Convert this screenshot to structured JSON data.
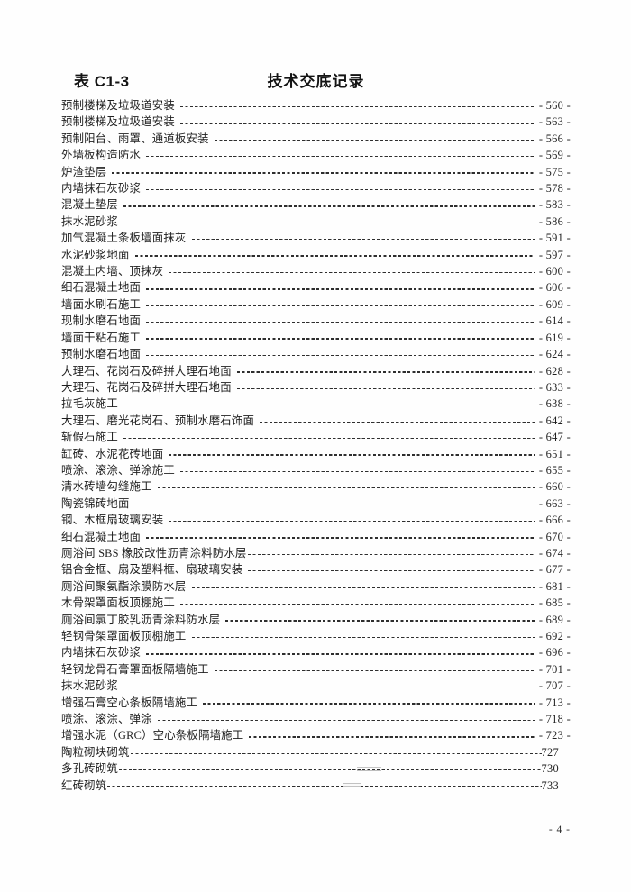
{
  "header": {
    "form_code": "表 C1-3",
    "title": "技术交底记录"
  },
  "toc": {
    "entries": [
      {
        "label": "预制楼梯及垃圾道安装",
        "page": "- 560 -"
      },
      {
        "label": "预制楼梯及垃圾道安装",
        "page": "- 563 -"
      },
      {
        "label": "预制阳台、雨罩、通道板安装",
        "page": "- 566 -"
      },
      {
        "label": "外墙板构造防水",
        "page": "- 569 -"
      },
      {
        "label": "炉渣垫层",
        "page": "- 575 -"
      },
      {
        "label": "内墙抹石灰砂浆",
        "page": "- 578 -"
      },
      {
        "label": "混凝土垫层",
        "page": "- 583 -"
      },
      {
        "label": "抹水泥砂浆",
        "page": "- 586 -"
      },
      {
        "label": "加气混凝土条板墙面抹灰",
        "page": "- 591 -"
      },
      {
        "label": "水泥砂浆地面",
        "page": "- 597 -"
      },
      {
        "label": "混凝土内墙、顶抹灰",
        "page": "- 600 -"
      },
      {
        "label": "细石混凝土地面",
        "page": "- 606 -"
      },
      {
        "label": "墙面水刷石施工",
        "page": "- 609 -"
      },
      {
        "label": "现制水磨石地面",
        "page": "- 614 -"
      },
      {
        "label": "墙面干粘石施工",
        "page": "- 619 -"
      },
      {
        "label": "预制水磨石地面",
        "page": "- 624 -"
      },
      {
        "label": "大理石、花岗石及碎拼大理石地面",
        "page": "- 628 -"
      },
      {
        "label": "大理石、花岗石及碎拼大理石地面",
        "page": "- 633 -"
      },
      {
        "label": "拉毛灰施工",
        "page": "- 638 -"
      },
      {
        "label": "大理石、磨光花岗石、预制水磨石饰面",
        "page": "- 642 -"
      },
      {
        "label": "斩假石施工",
        "page": "- 647 -"
      },
      {
        "label": "缸砖、水泥花砖地面",
        "page": "- 651 -"
      },
      {
        "label": "喷涂、滚涂、弹涂施工",
        "page": "- 655 -"
      },
      {
        "label": "清水砖墙勾缝施工",
        "page": "- 660 -"
      },
      {
        "label": "陶瓷锦砖地面",
        "page": "- 663 -"
      },
      {
        "label": "钢、木框扇玻璃安装",
        "page": "- 666 -"
      },
      {
        "label": "细石混凝土地面",
        "page": "- 670 -"
      },
      {
        "label": "厕浴间 SBS 橡胶改性沥青涂料防水层",
        "page": "- 674 -",
        "variant": "nogap"
      },
      {
        "label": "铝合金框、扇及塑料框、扇玻璃安装",
        "page": "- 677 -"
      },
      {
        "label": "厕浴间聚氨酯涂膜防水层",
        "page": "- 681 -"
      },
      {
        "label": "木骨架罩面板顶棚施工",
        "page": "- 685 -"
      },
      {
        "label": "厕浴间氯丁胶乳沥青涂料防水层",
        "page": "- 689 -"
      },
      {
        "label": "轻钢骨架罩面板顶棚施工",
        "page": "- 692 -"
      },
      {
        "label": "内墙抹石灰砂浆",
        "page": "- 696 -"
      },
      {
        "label": "轻钢龙骨石膏罩面板隔墙施工",
        "page": "- 701 -"
      },
      {
        "label": "抹水泥砂浆",
        "page": "- 707 -"
      },
      {
        "label": "增强石膏空心条板隔墙施工",
        "page": "- 713 -"
      },
      {
        "label": "喷涂、滚涂、弹涂",
        "page": "- 718 -"
      },
      {
        "label": "增强水泥（GRC）空心条板隔墙施工",
        "page": "- 723 -"
      },
      {
        "label": "陶粒砌块砌筑",
        "page": "727",
        "variant": "tight"
      },
      {
        "label": "多孔砖砌筑",
        "page": "730",
        "variant": "tight"
      },
      {
        "label": "红砖砌筑",
        "page": "733",
        "variant": "tight"
      }
    ]
  },
  "footer": {
    "page_label": "- 4 -"
  },
  "colors": {
    "text": "#1d1d1d",
    "background": "#fefefe",
    "leader_dash": "#2e2e2e",
    "scan_artifact": "#c2c2c2"
  }
}
